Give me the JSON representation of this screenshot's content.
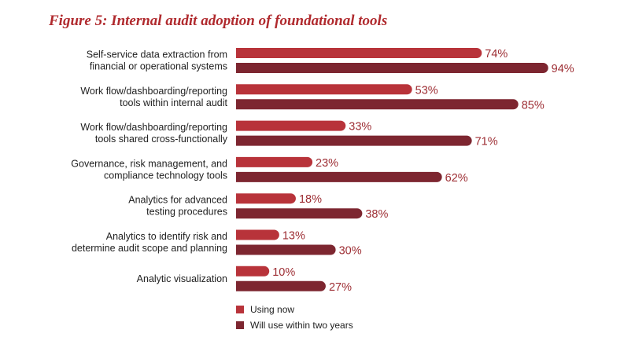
{
  "chart_data": {
    "type": "bar",
    "orientation": "horizontal",
    "title": "Figure 5: Internal audit adoption of foundational tools",
    "categories": [
      [
        "Self-service data extraction from",
        "financial or operational systems"
      ],
      [
        "Work flow/dashboarding/reporting",
        "tools within internal audit"
      ],
      [
        "Work flow/dashboarding/reporting",
        "tools shared cross-functionally"
      ],
      [
        "Governance, risk management, and",
        "compliance technology tools"
      ],
      [
        "Analytics for advanced",
        "testing procedures"
      ],
      [
        "Analytics to identify risk and",
        "determine audit scope and planning"
      ],
      [
        "Analytic visualization"
      ]
    ],
    "series": [
      {
        "name": "Using now",
        "color": "#b8333a",
        "values": [
          74,
          53,
          33,
          23,
          18,
          13,
          10
        ]
      },
      {
        "name": "Will use within two years",
        "color": "#7d2630",
        "values": [
          94,
          85,
          71,
          62,
          38,
          30,
          27
        ]
      }
    ],
    "value_suffix": "%",
    "xlim": [
      0,
      100
    ],
    "grid": false,
    "legend_position": "bottom"
  }
}
